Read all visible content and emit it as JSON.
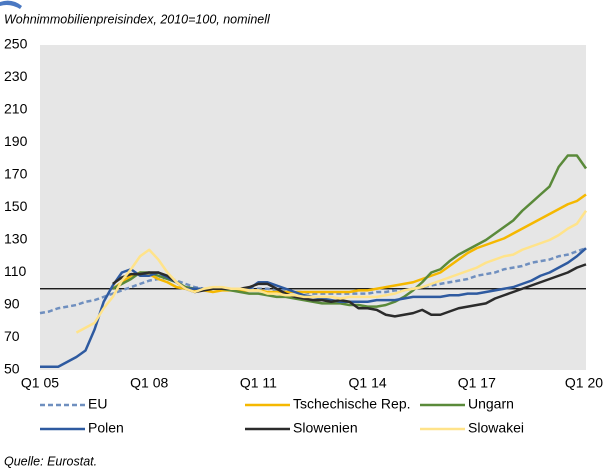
{
  "chart_data": {
    "type": "line",
    "subtitle": "Wohnimmobilienpreisindex,  2010=100, nominell",
    "source": "Quelle: Eurostat.",
    "categories": [
      "Q1 05",
      null,
      null,
      null,
      null,
      null,
      null,
      null,
      null,
      null,
      null,
      null,
      "Q1 08",
      null,
      null,
      null,
      null,
      null,
      null,
      null,
      null,
      null,
      null,
      null,
      "Q1 11",
      null,
      null,
      null,
      null,
      null,
      null,
      null,
      null,
      null,
      null,
      null,
      "Q1 14",
      null,
      null,
      null,
      null,
      null,
      null,
      null,
      null,
      null,
      null,
      null,
      "Q1 17",
      null,
      null,
      null,
      null,
      null,
      null,
      null,
      null,
      null,
      null,
      null,
      "Q1 20"
    ],
    "ylim": [
      50,
      250
    ],
    "yticks": [
      50,
      70,
      90,
      110,
      130,
      150,
      170,
      190,
      210,
      230,
      250
    ],
    "reference_line": 100,
    "series": [
      {
        "name": "EU",
        "color": "#6f8fbf",
        "dashed": true,
        "values": [
          85,
          86,
          88,
          89,
          90,
          92,
          93,
          95,
          97,
          99,
          101,
          103,
          105,
          106,
          107,
          105,
          103,
          101,
          100,
          100,
          100,
          100,
          100,
          100,
          100,
          100,
          99,
          99,
          98,
          98,
          97,
          97,
          97,
          97,
          97,
          97,
          97,
          98,
          98,
          99,
          99,
          100,
          101,
          102,
          103,
          104,
          105,
          106,
          108,
          109,
          110,
          112,
          113,
          114,
          116,
          117,
          118,
          120,
          121,
          123,
          125
        ]
      },
      {
        "name": "Tschechische Rep.",
        "color": "#f5b800",
        "values": [
          null,
          null,
          null,
          null,
          null,
          null,
          null,
          null,
          100,
          104,
          108,
          110,
          109,
          106,
          104,
          101,
          100,
          99,
          99,
          98,
          99,
          99,
          99,
          99,
          99,
          98,
          98,
          98,
          98,
          98,
          98,
          98,
          98,
          98,
          98,
          99,
          99,
          100,
          101,
          102,
          103,
          104,
          106,
          108,
          110,
          114,
          118,
          122,
          125,
          127,
          129,
          131,
          134,
          137,
          140,
          143,
          146,
          149,
          152,
          154,
          158
        ]
      },
      {
        "name": "Ungarn",
        "color": "#5a8a3a",
        "values": [
          null,
          null,
          null,
          null,
          null,
          null,
          null,
          null,
          100,
          103,
          106,
          110,
          110,
          108,
          106,
          104,
          101,
          100,
          100,
          100,
          100,
          99,
          98,
          97,
          97,
          96,
          95,
          95,
          94,
          93,
          92,
          91,
          91,
          91,
          90,
          90,
          89,
          89,
          90,
          92,
          95,
          99,
          104,
          110,
          112,
          117,
          121,
          124,
          127,
          130,
          134,
          138,
          142,
          148,
          153,
          158,
          163,
          175,
          182,
          182,
          174
        ]
      },
      {
        "name": "Polen",
        "color": "#2e5aa0",
        "values": [
          52,
          52,
          52,
          55,
          58,
          62,
          75,
          92,
          102,
          110,
          112,
          108,
          108,
          110,
          107,
          104,
          100,
          100,
          100,
          100,
          100,
          100,
          100,
          100,
          104,
          104,
          102,
          100,
          98,
          96,
          95,
          94,
          93,
          92,
          92,
          92,
          92,
          93,
          93,
          93,
          94,
          95,
          95,
          95,
          95,
          96,
          96,
          97,
          97,
          98,
          99,
          100,
          101,
          103,
          105,
          108,
          110,
          113,
          116,
          120,
          125
        ]
      },
      {
        "name": "Slowenien",
        "color": "#2b2b2b",
        "values": [
          null,
          null,
          null,
          null,
          null,
          null,
          null,
          null,
          103,
          107,
          109,
          109,
          110,
          110,
          108,
          104,
          100,
          98,
          99,
          100,
          100,
          100,
          100,
          101,
          103,
          103,
          100,
          97,
          95,
          94,
          93,
          93,
          92,
          93,
          92,
          88,
          88,
          87,
          84,
          83,
          84,
          85,
          87,
          84,
          84,
          86,
          88,
          89,
          90,
          91,
          94,
          96,
          98,
          100,
          102,
          104,
          106,
          108,
          110,
          113,
          115
        ]
      },
      {
        "name": "Slowakei",
        "color": "#ffe38a",
        "values": [
          null,
          null,
          null,
          null,
          73,
          76,
          79,
          88,
          95,
          105,
          112,
          120,
          124,
          118,
          110,
          104,
          100,
          98,
          100,
          101,
          101,
          100,
          100,
          99,
          99,
          97,
          97,
          96,
          96,
          95,
          95,
          95,
          95,
          94,
          95,
          95,
          95,
          95,
          96,
          97,
          99,
          100,
          101,
          103,
          105,
          107,
          109,
          111,
          113,
          116,
          118,
          120,
          121,
          124,
          126,
          128,
          130,
          133,
          137,
          140,
          148
        ]
      }
    ]
  }
}
